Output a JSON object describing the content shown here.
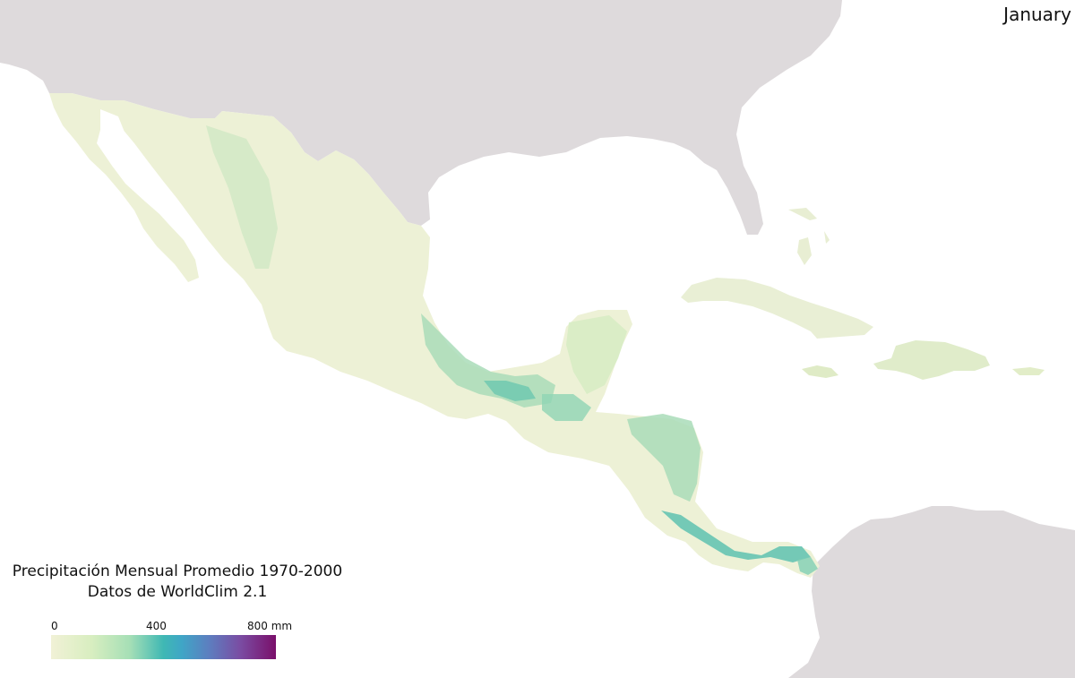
{
  "map": {
    "month_label": "January",
    "title_line1": "Precipitación Mensual Promedio 1970-2000",
    "title_line2": "Datos de WorldClim 2.1",
    "legend": {
      "tick_min": "0",
      "tick_mid": "400",
      "tick_max": "800 mm",
      "unit": "mm",
      "range": [
        0,
        800
      ],
      "ramp_colors": [
        "#f1f1d6",
        "#d8eec0",
        "#a6dfb6",
        "#3fb8b4",
        "#5c7fc0",
        "#7a4da3",
        "#7a0f6a"
      ]
    },
    "colors": {
      "ocean": "#ffffff",
      "context_land": "#dedadc",
      "low_precip": "#eff1d6",
      "high_precip": "#5cc2b0"
    }
  }
}
